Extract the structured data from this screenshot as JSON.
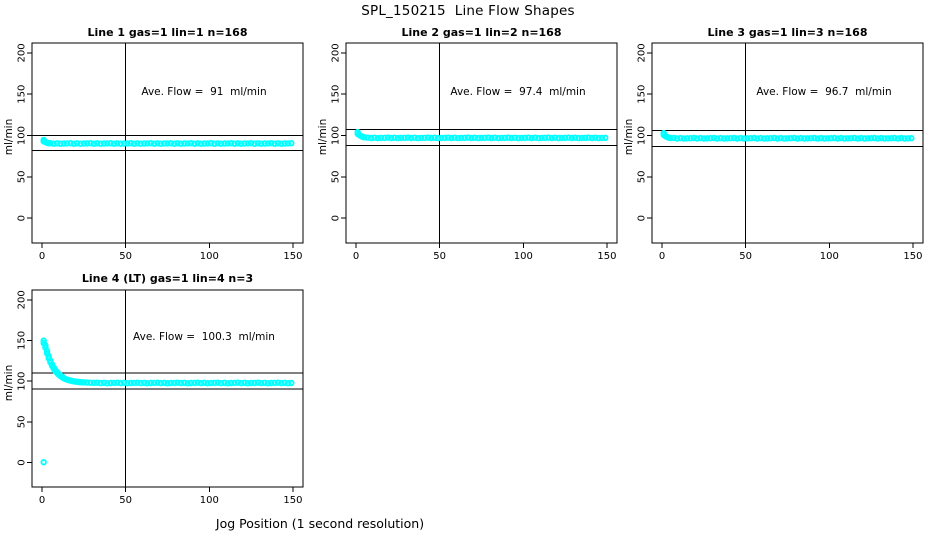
{
  "main_title": "SPL_150215  Line Flow Shapes",
  "x_axis_label": "Jog Position (1 second resolution)",
  "colors": {
    "point": "#00FFFF",
    "axis": "#000000",
    "text": "#000000",
    "background": "#FFFFFF"
  },
  "chart_data": [
    {
      "type": "scatter",
      "title": "Line 1 gas=1 lin=1 n=168",
      "ylabel": "ml/min",
      "annotation": "Ave. Flow =  91  ml/min",
      "avg_flow": 91,
      "n": 168,
      "xlim": [
        -6,
        156
      ],
      "ylim": [
        -30,
        212
      ],
      "x_ticks": [
        0,
        50,
        100,
        150
      ],
      "y_ticks": [
        0,
        50,
        100,
        150,
        200
      ],
      "vline_x": 50,
      "ref_lines": [
        100.1,
        81.9
      ],
      "grid": false,
      "points": [
        [
          1,
          94.8
        ],
        [
          1,
          93.0
        ],
        [
          2,
          92.2
        ],
        [
          3,
          91.3
        ],
        [
          4,
          90.8
        ],
        [
          5,
          90.7
        ],
        [
          7,
          90.2
        ],
        [
          9,
          90.6
        ],
        [
          11,
          90.1
        ],
        [
          13,
          90.4
        ],
        [
          15,
          90.5
        ],
        [
          17,
          90.7
        ],
        [
          19,
          90.2
        ],
        [
          21,
          90.6
        ],
        [
          23,
          90.1
        ],
        [
          25,
          90.4
        ],
        [
          27,
          90.5
        ],
        [
          29,
          90.7
        ],
        [
          31,
          90.2
        ],
        [
          33,
          90.6
        ],
        [
          35,
          90.1
        ],
        [
          37,
          90.4
        ],
        [
          39,
          90.5
        ],
        [
          41,
          90.7
        ],
        [
          43,
          90.2
        ],
        [
          45,
          90.6
        ],
        [
          47,
          90.1
        ],
        [
          49,
          90.4
        ],
        [
          51,
          90.5
        ],
        [
          53,
          90.7
        ],
        [
          55,
          90.2
        ],
        [
          57,
          90.6
        ],
        [
          59,
          90.1
        ],
        [
          61,
          90.4
        ],
        [
          63,
          90.5
        ],
        [
          65,
          90.7
        ],
        [
          67,
          90.2
        ],
        [
          69,
          90.6
        ],
        [
          71,
          90.1
        ],
        [
          73,
          90.4
        ],
        [
          75,
          90.5
        ],
        [
          77,
          90.7
        ],
        [
          79,
          90.2
        ],
        [
          81,
          90.6
        ],
        [
          83,
          90.1
        ],
        [
          85,
          90.4
        ],
        [
          87,
          90.5
        ],
        [
          89,
          90.7
        ],
        [
          91,
          90.2
        ],
        [
          93,
          90.6
        ],
        [
          95,
          90.1
        ],
        [
          97,
          90.4
        ],
        [
          99,
          90.5
        ],
        [
          101,
          90.7
        ],
        [
          103,
          90.2
        ],
        [
          105,
          90.6
        ],
        [
          107,
          90.1
        ],
        [
          109,
          90.4
        ],
        [
          111,
          90.5
        ],
        [
          113,
          90.7
        ],
        [
          115,
          90.2
        ],
        [
          117,
          90.6
        ],
        [
          119,
          90.1
        ],
        [
          121,
          90.4
        ],
        [
          123,
          90.5
        ],
        [
          125,
          90.7
        ],
        [
          127,
          90.2
        ],
        [
          129,
          90.6
        ],
        [
          131,
          90.1
        ],
        [
          133,
          90.4
        ],
        [
          135,
          90.5
        ],
        [
          137,
          90.7
        ],
        [
          139,
          90.2
        ],
        [
          141,
          90.6
        ],
        [
          143,
          90.1
        ],
        [
          145,
          90.4
        ],
        [
          147,
          90.5
        ],
        [
          149,
          90.7
        ]
      ]
    },
    {
      "type": "scatter",
      "title": "Line 2 gas=1 lin=2 n=168",
      "ylabel": "ml/min",
      "annotation": "Ave. Flow =  97.4  ml/min",
      "avg_flow": 97.4,
      "n": 168,
      "xlim": [
        -6,
        156
      ],
      "ylim": [
        -30,
        212
      ],
      "x_ticks": [
        0,
        50,
        100,
        150
      ],
      "y_ticks": [
        0,
        50,
        100,
        150,
        200
      ],
      "vline_x": 50,
      "ref_lines": [
        107.1,
        87.7
      ],
      "grid": false,
      "points": [
        [
          1,
          104.2
        ],
        [
          1,
          102.0
        ],
        [
          2,
          100.6
        ],
        [
          3,
          99.3
        ],
        [
          4,
          98.4
        ],
        [
          5,
          97.9
        ],
        [
          7,
          97.5
        ],
        [
          9,
          97.0
        ],
        [
          11,
          97.4
        ],
        [
          13,
          96.9
        ],
        [
          15,
          97.2
        ],
        [
          17,
          97.3
        ],
        [
          19,
          97.5
        ],
        [
          21,
          97.0
        ],
        [
          23,
          97.4
        ],
        [
          25,
          96.9
        ],
        [
          27,
          97.2
        ],
        [
          29,
          97.3
        ],
        [
          31,
          97.5
        ],
        [
          33,
          97.0
        ],
        [
          35,
          97.4
        ],
        [
          37,
          96.9
        ],
        [
          39,
          97.2
        ],
        [
          41,
          97.3
        ],
        [
          43,
          97.5
        ],
        [
          45,
          97.0
        ],
        [
          47,
          97.4
        ],
        [
          49,
          96.9
        ],
        [
          51,
          97.2
        ],
        [
          53,
          97.3
        ],
        [
          55,
          97.5
        ],
        [
          57,
          97.0
        ],
        [
          59,
          97.4
        ],
        [
          61,
          96.9
        ],
        [
          63,
          97.2
        ],
        [
          65,
          97.3
        ],
        [
          67,
          97.5
        ],
        [
          69,
          97.0
        ],
        [
          71,
          97.4
        ],
        [
          73,
          96.9
        ],
        [
          75,
          97.2
        ],
        [
          77,
          97.3
        ],
        [
          79,
          97.5
        ],
        [
          81,
          97.0
        ],
        [
          83,
          97.4
        ],
        [
          85,
          96.9
        ],
        [
          87,
          97.2
        ],
        [
          89,
          97.3
        ],
        [
          91,
          97.5
        ],
        [
          93,
          97.0
        ],
        [
          95,
          97.4
        ],
        [
          97,
          96.9
        ],
        [
          99,
          97.2
        ],
        [
          101,
          97.3
        ],
        [
          103,
          97.5
        ],
        [
          105,
          97.0
        ],
        [
          107,
          97.4
        ],
        [
          109,
          96.9
        ],
        [
          111,
          97.2
        ],
        [
          113,
          97.3
        ],
        [
          115,
          97.5
        ],
        [
          117,
          97.0
        ],
        [
          119,
          97.4
        ],
        [
          121,
          96.9
        ],
        [
          123,
          97.2
        ],
        [
          125,
          97.3
        ],
        [
          127,
          97.5
        ],
        [
          129,
          97.0
        ],
        [
          131,
          97.4
        ],
        [
          133,
          96.9
        ],
        [
          135,
          97.2
        ],
        [
          137,
          97.3
        ],
        [
          139,
          97.5
        ],
        [
          141,
          97.0
        ],
        [
          143,
          97.4
        ],
        [
          145,
          96.9
        ],
        [
          147,
          97.2
        ],
        [
          149,
          97.3
        ]
      ]
    },
    {
      "type": "scatter",
      "title": "Line 3 gas=1 lin=3 n=168",
      "ylabel": "ml/min",
      "annotation": "Ave. Flow =  96.7  ml/min",
      "avg_flow": 96.7,
      "n": 168,
      "xlim": [
        -6,
        156
      ],
      "ylim": [
        -30,
        212
      ],
      "x_ticks": [
        0,
        50,
        100,
        150
      ],
      "y_ticks": [
        0,
        50,
        100,
        150,
        200
      ],
      "vline_x": 50,
      "ref_lines": [
        106.4,
        87.0
      ],
      "grid": false,
      "points": [
        [
          1,
          103.0
        ],
        [
          1,
          100.9
        ],
        [
          2,
          99.4
        ],
        [
          3,
          98.2
        ],
        [
          4,
          97.4
        ],
        [
          5,
          97.0
        ],
        [
          7,
          97.0
        ],
        [
          9,
          96.5
        ],
        [
          11,
          96.9
        ],
        [
          13,
          96.4
        ],
        [
          15,
          96.7
        ],
        [
          17,
          96.8
        ],
        [
          19,
          97.0
        ],
        [
          21,
          96.5
        ],
        [
          23,
          96.9
        ],
        [
          25,
          96.4
        ],
        [
          27,
          96.7
        ],
        [
          29,
          96.8
        ],
        [
          31,
          97.0
        ],
        [
          33,
          96.5
        ],
        [
          35,
          96.9
        ],
        [
          37,
          96.4
        ],
        [
          39,
          96.7
        ],
        [
          41,
          96.8
        ],
        [
          43,
          97.0
        ],
        [
          45,
          96.5
        ],
        [
          47,
          96.9
        ],
        [
          49,
          96.4
        ],
        [
          51,
          96.7
        ],
        [
          53,
          96.8
        ],
        [
          55,
          97.0
        ],
        [
          57,
          96.5
        ],
        [
          59,
          96.9
        ],
        [
          61,
          96.4
        ],
        [
          63,
          96.7
        ],
        [
          65,
          96.8
        ],
        [
          67,
          97.0
        ],
        [
          69,
          96.5
        ],
        [
          71,
          96.9
        ],
        [
          73,
          96.4
        ],
        [
          75,
          96.7
        ],
        [
          77,
          96.8
        ],
        [
          79,
          97.0
        ],
        [
          81,
          96.5
        ],
        [
          83,
          96.9
        ],
        [
          85,
          96.4
        ],
        [
          87,
          96.7
        ],
        [
          89,
          96.8
        ],
        [
          91,
          97.0
        ],
        [
          93,
          96.5
        ],
        [
          95,
          96.9
        ],
        [
          97,
          96.4
        ],
        [
          99,
          96.7
        ],
        [
          101,
          96.8
        ],
        [
          103,
          97.0
        ],
        [
          105,
          96.5
        ],
        [
          107,
          96.9
        ],
        [
          109,
          96.4
        ],
        [
          111,
          96.7
        ],
        [
          113,
          96.8
        ],
        [
          115,
          97.0
        ],
        [
          117,
          96.5
        ],
        [
          119,
          96.9
        ],
        [
          121,
          96.4
        ],
        [
          123,
          96.7
        ],
        [
          125,
          96.8
        ],
        [
          127,
          97.0
        ],
        [
          129,
          96.5
        ],
        [
          131,
          96.9
        ],
        [
          133,
          96.4
        ],
        [
          135,
          96.7
        ],
        [
          137,
          96.8
        ],
        [
          139,
          97.0
        ],
        [
          141,
          96.5
        ],
        [
          143,
          96.9
        ],
        [
          145,
          96.4
        ],
        [
          147,
          96.7
        ],
        [
          149,
          96.8
        ]
      ]
    },
    {
      "type": "scatter",
      "title": "Line 4 (LT) gas=1 lin=4 n=3",
      "ylabel": "ml/min",
      "annotation": "Ave. Flow =  100.3  ml/min",
      "avg_flow": 100.3,
      "n": 3,
      "xlim": [
        -6,
        156
      ],
      "ylim": [
        -30,
        212
      ],
      "x_ticks": [
        0,
        50,
        100,
        150
      ],
      "y_ticks": [
        0,
        50,
        100,
        150,
        200
      ],
      "vline_x": 50,
      "ref_lines": [
        110.3,
        90.3
      ],
      "grid": false,
      "points": [
        [
          1,
          149.8
        ],
        [
          1,
          146.8
        ],
        [
          2,
          144.0
        ],
        [
          2,
          141.2
        ],
        [
          3,
          137.2
        ],
        [
          3,
          134.0
        ],
        [
          4,
          130.8
        ],
        [
          4,
          128.0
        ],
        [
          5,
          125.2
        ],
        [
          5,
          123.0
        ],
        [
          6,
          120.6
        ],
        [
          6,
          118.8
        ],
        [
          7,
          116.8
        ],
        [
          7,
          115.3
        ],
        [
          8,
          113.6
        ],
        [
          8,
          112.4
        ],
        [
          9,
          111.0
        ],
        [
          9,
          110.0
        ],
        [
          10,
          108.8
        ],
        [
          10,
          108.0
        ],
        [
          11,
          107.1
        ],
        [
          11,
          106.3
        ],
        [
          12,
          105.6
        ],
        [
          12,
          104.9
        ],
        [
          13,
          103.7
        ],
        [
          14,
          102.7
        ],
        [
          15,
          101.9
        ],
        [
          16,
          101.2
        ],
        [
          17,
          100.7
        ],
        [
          18,
          100.2
        ],
        [
          19,
          99.8
        ],
        [
          20,
          99.5
        ],
        [
          21,
          99.2
        ],
        [
          22,
          99.0
        ],
        [
          23,
          98.8
        ],
        [
          24,
          98.6
        ],
        [
          25,
          98.5
        ],
        [
          27,
          98.3
        ],
        [
          29,
          98.1
        ],
        [
          31,
          98.0
        ],
        [
          33,
          98.1
        ],
        [
          35,
          97.6
        ],
        [
          37,
          98.0
        ],
        [
          39,
          97.5
        ],
        [
          41,
          97.8
        ],
        [
          43,
          97.9
        ],
        [
          45,
          98.1
        ],
        [
          47,
          97.6
        ],
        [
          49,
          98.0
        ],
        [
          51,
          97.5
        ],
        [
          53,
          97.8
        ],
        [
          55,
          97.9
        ],
        [
          57,
          98.1
        ],
        [
          59,
          97.6
        ],
        [
          61,
          98.0
        ],
        [
          63,
          97.5
        ],
        [
          65,
          97.8
        ],
        [
          67,
          97.9
        ],
        [
          69,
          98.1
        ],
        [
          71,
          97.6
        ],
        [
          73,
          98.0
        ],
        [
          75,
          97.5
        ],
        [
          77,
          97.8
        ],
        [
          79,
          97.9
        ],
        [
          81,
          98.1
        ],
        [
          83,
          97.6
        ],
        [
          85,
          98.0
        ],
        [
          87,
          97.5
        ],
        [
          89,
          97.8
        ],
        [
          91,
          97.9
        ],
        [
          93,
          98.1
        ],
        [
          95,
          97.6
        ],
        [
          97,
          98.0
        ],
        [
          99,
          97.5
        ],
        [
          101,
          97.8
        ],
        [
          103,
          97.9
        ],
        [
          105,
          98.1
        ],
        [
          107,
          97.6
        ],
        [
          109,
          98.0
        ],
        [
          111,
          97.5
        ],
        [
          113,
          97.8
        ],
        [
          115,
          97.9
        ],
        [
          117,
          98.1
        ],
        [
          119,
          97.6
        ],
        [
          121,
          98.0
        ],
        [
          123,
          97.5
        ],
        [
          125,
          97.8
        ],
        [
          127,
          97.9
        ],
        [
          129,
          98.1
        ],
        [
          131,
          97.6
        ],
        [
          133,
          98.0
        ],
        [
          135,
          97.5
        ],
        [
          137,
          97.8
        ],
        [
          139,
          97.9
        ],
        [
          141,
          98.1
        ],
        [
          143,
          97.6
        ],
        [
          145,
          98.0
        ],
        [
          147,
          97.5
        ],
        [
          149,
          97.8
        ],
        [
          1,
          0.5
        ]
      ]
    }
  ]
}
